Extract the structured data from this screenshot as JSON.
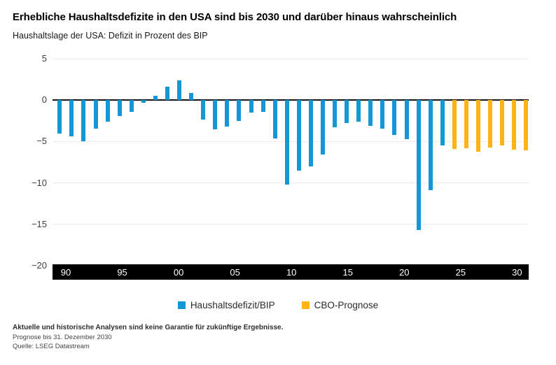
{
  "header": {
    "title": "Erhebliche Haushaltsdefizite in den USA sind bis 2030 und darüber hinaus wahrscheinlich",
    "subtitle": "Haushaltslage der USA: Defizit in Prozent des BIP"
  },
  "chart_data": {
    "type": "bar",
    "title": "Erhebliche Haushaltsdefizite in den USA sind bis 2030 und darüber hinaus wahrscheinlich",
    "subtitle": "Haushaltslage der USA: Defizit in Prozent des BIP",
    "unit": "Prozent des BIP",
    "categories": [
      1990,
      1991,
      1992,
      1993,
      1994,
      1995,
      1996,
      1997,
      1998,
      1999,
      2000,
      2001,
      2002,
      2003,
      2004,
      2005,
      2006,
      2007,
      2008,
      2009,
      2010,
      2011,
      2012,
      2013,
      2014,
      2015,
      2016,
      2017,
      2018,
      2019,
      2020,
      2021,
      2022,
      2023,
      2024,
      2025,
      2026,
      2027,
      2028,
      2029
    ],
    "series": [
      {
        "name": "Haushaltsdefizit/BIP",
        "color": "#1496D7",
        "start_year": 1990,
        "values": [
          -4.0,
          -4.4,
          -5.0,
          -3.4,
          -2.6,
          -1.9,
          -1.4,
          -0.3,
          0.5,
          1.6,
          2.4,
          0.9,
          -2.3,
          -3.5,
          -3.2,
          -2.5,
          -1.5,
          -1.4,
          -4.6,
          -10.2,
          -8.5,
          -8.0,
          -6.6,
          -3.3,
          -2.8,
          -2.6,
          -3.1,
          -3.4,
          -4.2,
          -4.7,
          -15.7,
          -10.9,
          -5.5
        ]
      },
      {
        "name": "CBO-Prognose",
        "color": "#FDB414",
        "start_year": 2023,
        "values": [
          -5.9,
          -5.8,
          -6.2,
          -5.7,
          -5.5,
          -6.0,
          -6.1
        ]
      }
    ],
    "ylim": [
      -20,
      5
    ],
    "yticks": [
      5,
      0,
      -5,
      -10,
      -15,
      -20
    ],
    "xticks": [
      {
        "label": "90",
        "year": 1990
      },
      {
        "label": "95",
        "year": 1995
      },
      {
        "label": "00",
        "year": 2000
      },
      {
        "label": "05",
        "year": 2005
      },
      {
        "label": "10",
        "year": 2010
      },
      {
        "label": "15",
        "year": 2015
      },
      {
        "label": "20",
        "year": 2020
      },
      {
        "label": "25",
        "year": 2025
      },
      {
        "label": "30",
        "year": 2030
      }
    ],
    "grid": true,
    "legend_position": "bottom",
    "xaxis_style": "black-band-white-labels"
  },
  "legend": {
    "items": [
      {
        "label": "Haushaltsdefizit/BIP",
        "color": "#1496D7"
      },
      {
        "label": "CBO-Prognose",
        "color": "#FDB414"
      }
    ]
  },
  "footer": {
    "disclaimer": "Aktuelle und historische Analysen sind keine Garantie für zukünftige Ergebnisse.",
    "forecast_note": "Prognose bis 31. Dezember 2030",
    "source": "Quelle: LSEG Datastream"
  }
}
